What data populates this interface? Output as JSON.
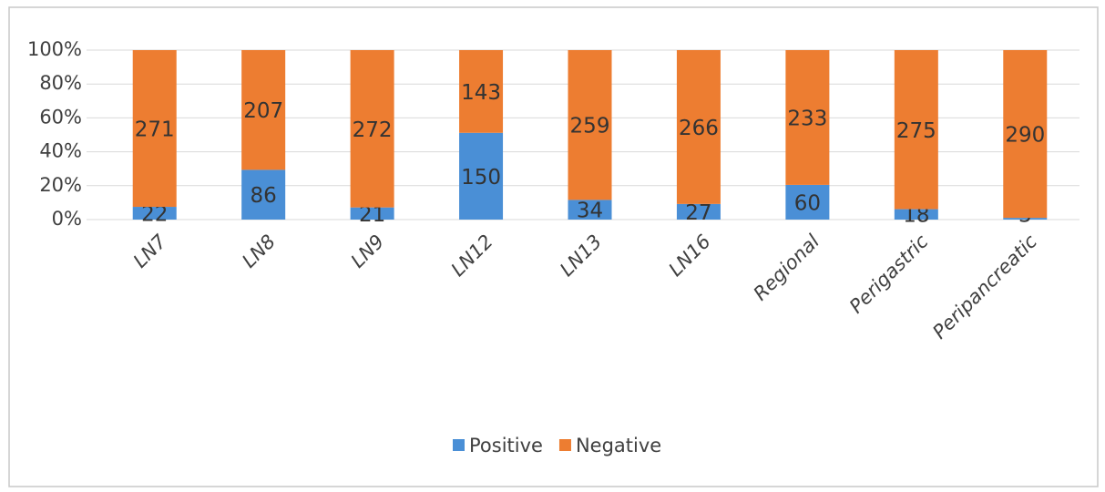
{
  "chart_data": {
    "type": "bar",
    "stacking": "percent",
    "categories": [
      "LN7",
      "LN8",
      "LN9",
      "LN12",
      "LN13",
      "LN16",
      "Regional",
      "Perigastric",
      "Peripancreatic"
    ],
    "series": [
      {
        "name": "Positive",
        "color": "#4a8fd6",
        "values": [
          22,
          86,
          21,
          150,
          34,
          27,
          60,
          18,
          3
        ]
      },
      {
        "name": "Negative",
        "color": "#ed7d31",
        "values": [
          271,
          207,
          272,
          143,
          259,
          266,
          233,
          275,
          290
        ]
      }
    ],
    "ylim": [
      0,
      100
    ],
    "yticks": [
      {
        "value": 0,
        "label": "0%"
      },
      {
        "value": 20,
        "label": "20%"
      },
      {
        "value": 40,
        "label": "40%"
      },
      {
        "value": 60,
        "label": "60%"
      },
      {
        "value": 80,
        "label": "80%"
      },
      {
        "value": 100,
        "label": "100%"
      }
    ],
    "grid": true,
    "legend": "bottom"
  }
}
